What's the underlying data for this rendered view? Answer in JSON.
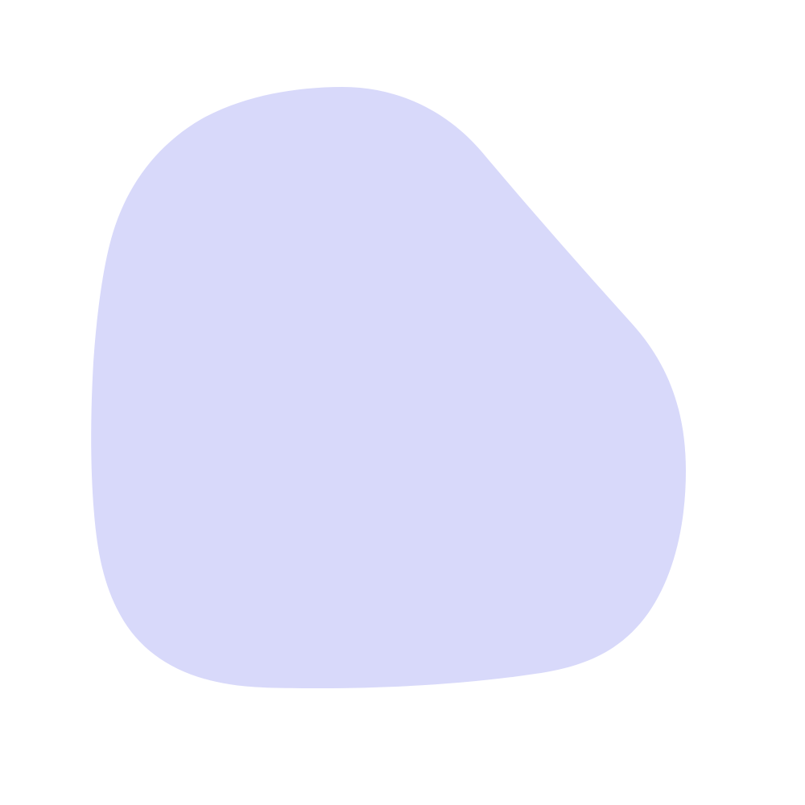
{
  "background_color": "#ffffff",
  "shape": {
    "kind": "blob",
    "fill_color": "#d8d9fa"
  }
}
